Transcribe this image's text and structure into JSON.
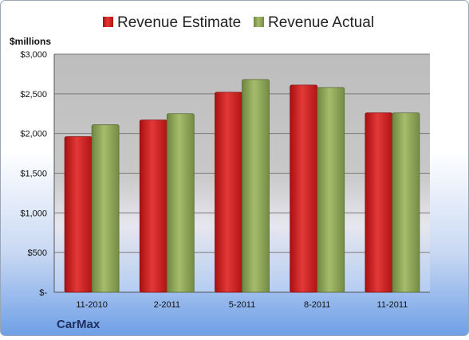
{
  "chart_data": {
    "type": "bar",
    "title": "",
    "xlabel": "",
    "ylabel": "$millions",
    "company": "CarMax",
    "categories": [
      "11-2010",
      "2-2011",
      "5-2011",
      "8-2011",
      "11-2011"
    ],
    "series": [
      {
        "name": "Revenue Estimate",
        "color": "#C81E1E",
        "values": [
          1960,
          2170,
          2520,
          2610,
          2260
        ]
      },
      {
        "name": "Revenue Actual",
        "color": "#8AA055",
        "values": [
          2110,
          2250,
          2680,
          2580,
          2260
        ]
      }
    ],
    "ylim": [
      0,
      3000
    ],
    "yticks": [
      0,
      500,
      1000,
      1500,
      2000,
      2500,
      3000
    ],
    "ytick_labels": [
      "$-",
      "$500",
      "$1,000",
      "$1,500",
      "$2,000",
      "$2,500",
      "$3,000"
    ],
    "grid": true,
    "legend_position": "top"
  }
}
